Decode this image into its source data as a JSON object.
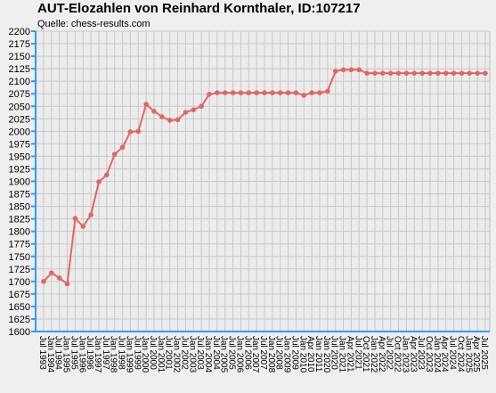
{
  "chart_data": {
    "type": "line",
    "title": "AUT-Elozahlen von Reinhard Kornthaler, ID:107217",
    "subtitle": "Quelle: chess-results.com",
    "categories": [
      "Jul 1993",
      "Jan 1994",
      "Jul 1994",
      "Jan 1995",
      "Jul 1995",
      "Jan 1996",
      "Jul 1996",
      "Jan 1997",
      "Jul 1997",
      "Jan 1998",
      "Jul 1998",
      "Jan 1999",
      "Jul 1999",
      "Jan 2000",
      "Jul 2000",
      "Jan 2001",
      "Jul 2001",
      "Jan 2002",
      "Jul 2002",
      "Jan 2003",
      "Jul 2003",
      "Jan 2004",
      "Jul 2004",
      "Jan 2005",
      "Jul 2005",
      "Jan 2006",
      "Jul 2006",
      "Jan 2007",
      "Jul 2007",
      "Jan 2008",
      "Jul 2008",
      "Jan 2009",
      "Jul 2009",
      "Jan 2010",
      "Apr 2010",
      "Jan 2011",
      "Jan 2020",
      "Jul 2020",
      "Jan 2021",
      "Apr 2021",
      "Jul 2021",
      "Oct 2021",
      "Jan 2022",
      "Apr 2022",
      "Jul 2022",
      "Oct 2022",
      "Jan 2023",
      "Apr 2023",
      "Jul 2023",
      "Oct 2023",
      "Jan 2024",
      "Apr 2024",
      "Jul 2024",
      "Oct 2024",
      "Jan 2025",
      "Apr 2025",
      "Jul 2025"
    ],
    "series": [
      {
        "name": "Elo",
        "color": "#e06666",
        "values": [
          1700,
          1717,
          1707,
          1695,
          1826,
          1810,
          1833,
          1899,
          1913,
          1954,
          1968,
          1999,
          2000,
          2054,
          2040,
          2029,
          2022,
          2023,
          2038,
          2043,
          2050,
          2074,
          2077,
          2077,
          2077,
          2077,
          2077,
          2077,
          2077,
          2077,
          2077,
          2077,
          2077,
          2072,
          2077,
          2077,
          2080,
          2120,
          2123,
          2123,
          2123,
          2116,
          2116,
          2116,
          2116,
          2116,
          2116,
          2116,
          2116,
          2116,
          2116,
          2116,
          2116,
          2116,
          2116,
          2116,
          2116
        ]
      }
    ],
    "ylim": [
      1600,
      2200
    ],
    "yticks": [
      1600,
      1625,
      1650,
      1675,
      1700,
      1725,
      1750,
      1775,
      1800,
      1825,
      1850,
      1875,
      1900,
      1925,
      1950,
      1975,
      2000,
      2025,
      2050,
      2075,
      2100,
      2125,
      2150,
      2175,
      2200
    ],
    "grid": true
  }
}
